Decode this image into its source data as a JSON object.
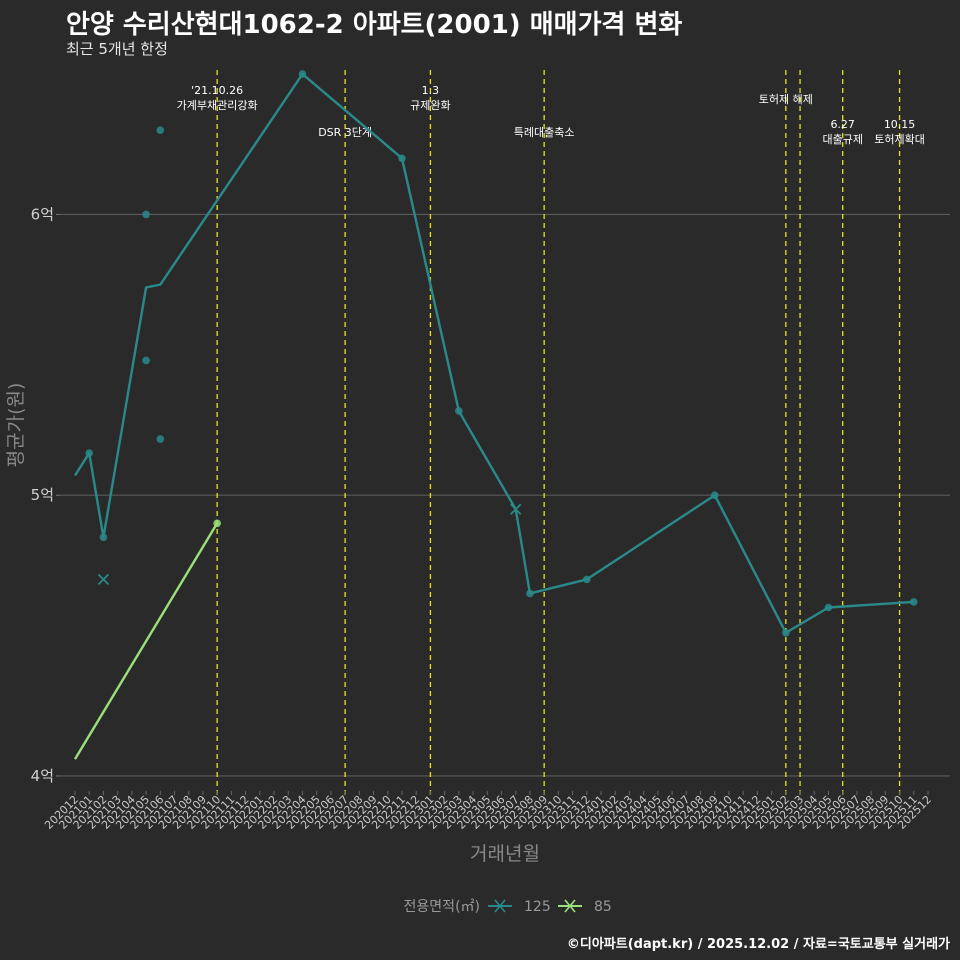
{
  "title": "안양 수리산현대1062-2 아파트(2001) 매매가격 변화",
  "subtitle": "최근 5개년 한정",
  "caption": "©디아파트(dapt.kr) / 2025.12.02 / 자료=국토교통부 실거래가",
  "chart_data": {
    "type": "line",
    "xlabel": "거래년월",
    "ylabel": "평균가(원)",
    "x_categories": [
      "202012",
      "202101",
      "202102",
      "202103",
      "202104",
      "202105",
      "202106",
      "202107",
      "202108",
      "202109",
      "202110",
      "202111",
      "202112",
      "202201",
      "202202",
      "202203",
      "202204",
      "202205",
      "202206",
      "202207",
      "202208",
      "202209",
      "202210",
      "202211",
      "202212",
      "202301",
      "202302",
      "202303",
      "202304",
      "202305",
      "202306",
      "202307",
      "202308",
      "202309",
      "202310",
      "202311",
      "202312",
      "202401",
      "202402",
      "202403",
      "202404",
      "202405",
      "202406",
      "202407",
      "202408",
      "202409",
      "202410",
      "202411",
      "202412",
      "202501",
      "202502",
      "202503",
      "202504",
      "202505",
      "202506",
      "202507",
      "202508",
      "202509",
      "202510",
      "202511",
      "202512"
    ],
    "ylim": [
      3.95,
      6.55
    ],
    "y_ticks": [
      {
        "value": 4,
        "label": "4억"
      },
      {
        "value": 5,
        "label": "5억"
      },
      {
        "value": 6,
        "label": "6억"
      }
    ],
    "legend": {
      "title": "전용면적(㎡)",
      "position": "bottom"
    },
    "series": [
      {
        "name": "125",
        "color": "#2a8a8a",
        "line": [
          [
            "202012",
            5.07
          ],
          [
            "202101",
            5.15
          ],
          [
            "202102",
            4.85
          ],
          [
            "202105",
            5.74
          ],
          [
            "202106",
            5.75
          ],
          [
            "202204",
            6.5
          ],
          [
            "202211",
            6.2
          ],
          [
            "202303",
            5.3
          ],
          [
            "202307",
            4.95
          ],
          [
            "202308",
            4.65
          ],
          [
            "202312",
            4.7
          ],
          [
            "202409",
            5.0
          ],
          [
            "202502",
            4.51
          ],
          [
            "202505",
            4.6
          ],
          [
            "202511",
            4.62
          ]
        ],
        "points": [
          [
            "202101",
            5.15
          ],
          [
            "202102",
            4.85
          ],
          [
            "202105",
            6.0
          ],
          [
            "202105",
            5.48
          ],
          [
            "202106",
            6.3
          ],
          [
            "202106",
            5.2
          ],
          [
            "202204",
            6.5
          ],
          [
            "202211",
            6.2
          ],
          [
            "202303",
            5.3
          ],
          [
            "202308",
            4.65
          ],
          [
            "202312",
            4.7
          ],
          [
            "202409",
            5.0
          ],
          [
            "202502",
            4.51
          ],
          [
            "202505",
            4.6
          ],
          [
            "202511",
            4.62
          ]
        ],
        "cancelled": [
          [
            "202102",
            4.7
          ],
          [
            "202307",
            4.95
          ]
        ]
      },
      {
        "name": "85",
        "color": "#9be07a",
        "line": [
          [
            "202012",
            4.06
          ],
          [
            "202110",
            4.9
          ]
        ],
        "points": [
          [
            "202110",
            4.9
          ]
        ],
        "cancelled": []
      }
    ],
    "events": [
      {
        "x": 10.0,
        "lines": [
          "'21.10.26",
          "가계부채관리강화"
        ],
        "row": 1
      },
      {
        "x": 19.0,
        "lines": [
          "DSR 3단계"
        ],
        "row": 2
      },
      {
        "x": 25.0,
        "lines": [
          "1.3",
          "규제완화"
        ],
        "row": 1
      },
      {
        "x": 33.0,
        "lines": [
          "특례대출축소"
        ],
        "row": 2
      },
      {
        "x": 50.0,
        "lines": [
          "토허제 해제"
        ],
        "row": 1
      },
      {
        "x": 51.0,
        "lines": [],
        "row": 1
      },
      {
        "x": 54.0,
        "lines": [
          "6.27",
          "대출규제"
        ],
        "row": 2
      },
      {
        "x": 58.0,
        "lines": [
          "10.15",
          "토허제확대"
        ],
        "row": 2
      }
    ]
  }
}
